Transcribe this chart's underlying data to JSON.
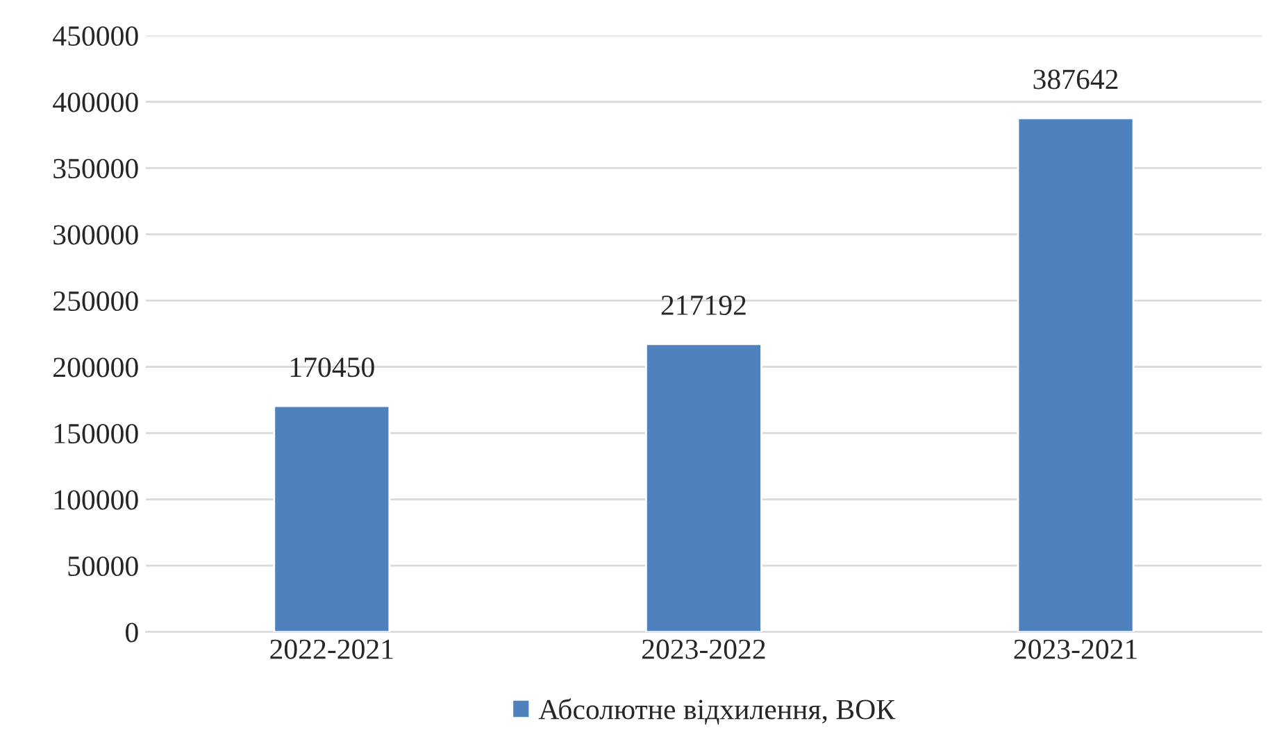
{
  "chart_data": {
    "type": "bar",
    "categories": [
      "2022-2021",
      "2023-2022",
      "2023-2021"
    ],
    "series": [
      {
        "name": "Абсолютне відхилення, ВОК",
        "color": "#4f81bd",
        "values": [
          170450,
          217192,
          387642
        ]
      }
    ],
    "ylim": [
      0,
      450000
    ],
    "yticks": [
      0,
      50000,
      100000,
      150000,
      200000,
      250000,
      300000,
      350000,
      400000,
      450000
    ],
    "grid": "y",
    "legend": "bottom",
    "data_labels": true
  }
}
